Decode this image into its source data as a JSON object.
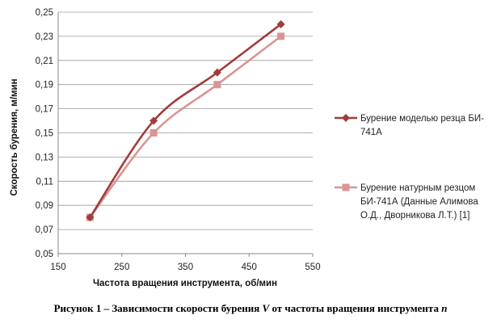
{
  "chart_data": {
    "type": "line",
    "x": [
      200,
      300,
      400,
      500
    ],
    "series": [
      {
        "name": "Бурение моделью резца БИ-741А",
        "color": "#a23b3b",
        "marker": "diamond",
        "values": [
          0.08,
          0.16,
          0.2,
          0.24
        ]
      },
      {
        "name": "Бурение натурным резцом БИ-741А (Данные Алимова О.Д., Дворникова Л.Т.) [1]",
        "color": "#d99594",
        "marker": "square",
        "values": [
          0.08,
          0.15,
          0.19,
          0.23
        ]
      }
    ],
    "xlabel": "Частота вращения инструмента, об/мин",
    "ylabel": "Скорость бурения, м/мин",
    "xlim": [
      150,
      550
    ],
    "ylim": [
      0.05,
      0.25
    ],
    "xticks": [
      "150",
      "250",
      "350",
      "450",
      "550"
    ],
    "yticks": [
      "0,05",
      "0,07",
      "0,09",
      "0,11",
      "0,13",
      "0,15",
      "0,17",
      "0,19",
      "0,21",
      "0,23",
      "0,25"
    ],
    "grid": "horizontal",
    "legend_position": "right",
    "legend_lines": [
      [
        "Бурение моделью резца БИ-",
        "741А"
      ],
      [
        "Бурение натурным резцом",
        "БИ-741А (Данные Алимова",
        "О.Д., Дворникова Л.Т.) [1]"
      ]
    ]
  },
  "caption": {
    "part1": "Рисунок 1 – Зависимости скорости бурения ",
    "var1": "V",
    "part2": " от частоты вращения инструмента ",
    "var2": "n"
  }
}
